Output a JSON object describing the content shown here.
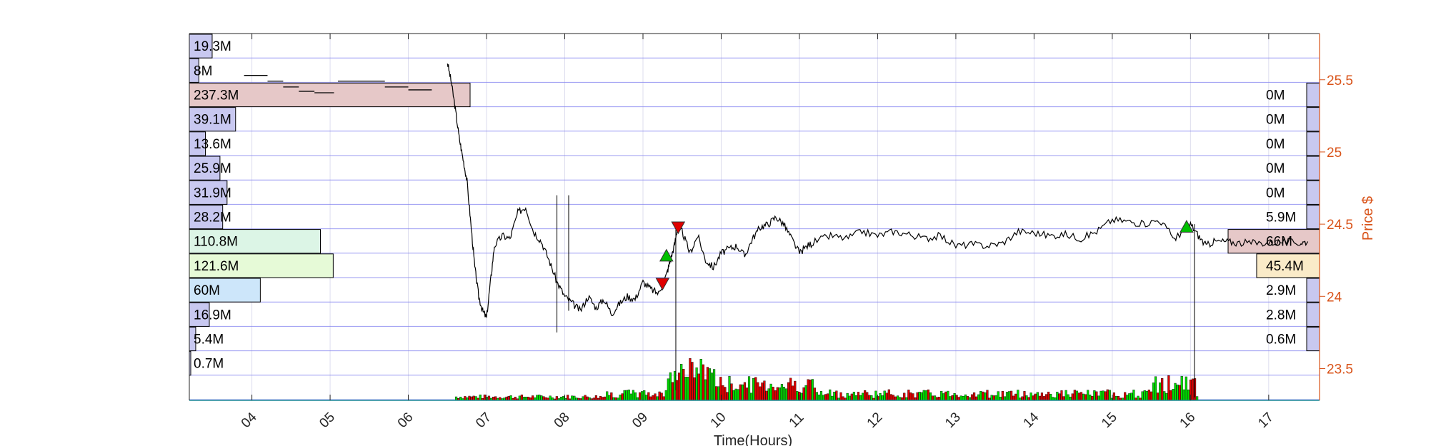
{
  "chart_data": {
    "type": "line",
    "xlabel": "Time(Hours)",
    "ylabel": "Price $",
    "x_ticks": [
      "04",
      "05",
      "06",
      "07",
      "08",
      "09",
      "10",
      "11",
      "12",
      "13",
      "14",
      "15",
      "16",
      "17"
    ],
    "xlim": [
      3.2,
      17.65
    ],
    "y_ticks": [
      23.5,
      24,
      24.5,
      25,
      25.5
    ],
    "ylim": [
      23.28,
      25.82
    ],
    "grid": true,
    "price_series": [
      [
        6.5,
        25.62
      ],
      [
        6.55,
        25.48
      ],
      [
        6.6,
        25.3
      ],
      [
        6.65,
        25.1
      ],
      [
        6.7,
        24.95
      ],
      [
        6.75,
        24.8
      ],
      [
        6.8,
        24.5
      ],
      [
        6.85,
        24.2
      ],
      [
        6.9,
        24.0
      ],
      [
        6.95,
        23.9
      ],
      [
        7.0,
        23.85
      ],
      [
        7.05,
        24.1
      ],
      [
        7.1,
        24.35
      ],
      [
        7.2,
        24.42
      ],
      [
        7.3,
        24.4
      ],
      [
        7.4,
        24.58
      ],
      [
        7.5,
        24.62
      ],
      [
        7.6,
        24.45
      ],
      [
        7.7,
        24.38
      ],
      [
        7.8,
        24.25
      ],
      [
        7.9,
        24.1
      ],
      [
        8.0,
        24.0
      ],
      [
        8.1,
        23.95
      ],
      [
        8.2,
        23.9
      ],
      [
        8.3,
        24.0
      ],
      [
        8.4,
        23.92
      ],
      [
        8.5,
        23.98
      ],
      [
        8.6,
        23.88
      ],
      [
        8.7,
        23.95
      ],
      [
        8.8,
        24.0
      ],
      [
        8.9,
        23.98
      ],
      [
        9.0,
        24.1
      ],
      [
        9.1,
        24.05
      ],
      [
        9.2,
        24.02
      ],
      [
        9.3,
        24.15
      ],
      [
        9.35,
        24.25
      ],
      [
        9.4,
        24.35
      ],
      [
        9.45,
        24.5
      ],
      [
        9.5,
        24.45
      ],
      [
        9.6,
        24.3
      ],
      [
        9.7,
        24.42
      ],
      [
        9.8,
        24.25
      ],
      [
        9.9,
        24.2
      ],
      [
        10.0,
        24.3
      ],
      [
        10.1,
        24.33
      ],
      [
        10.2,
        24.35
      ],
      [
        10.3,
        24.28
      ],
      [
        10.4,
        24.4
      ],
      [
        10.5,
        24.48
      ],
      [
        10.6,
        24.5
      ],
      [
        10.7,
        24.55
      ],
      [
        10.8,
        24.5
      ],
      [
        10.9,
        24.4
      ],
      [
        11.0,
        24.3
      ],
      [
        11.1,
        24.35
      ],
      [
        11.2,
        24.38
      ],
      [
        11.4,
        24.42
      ],
      [
        11.6,
        24.4
      ],
      [
        11.8,
        24.45
      ],
      [
        12.0,
        24.42
      ],
      [
        12.2,
        24.45
      ],
      [
        12.4,
        24.43
      ],
      [
        12.6,
        24.4
      ],
      [
        12.8,
        24.42
      ],
      [
        13.0,
        24.35
      ],
      [
        13.2,
        24.36
      ],
      [
        13.4,
        24.35
      ],
      [
        13.6,
        24.37
      ],
      [
        13.8,
        24.45
      ],
      [
        14.0,
        24.44
      ],
      [
        14.2,
        24.42
      ],
      [
        14.4,
        24.43
      ],
      [
        14.6,
        24.4
      ],
      [
        14.8,
        24.45
      ],
      [
        15.0,
        24.53
      ],
      [
        15.2,
        24.52
      ],
      [
        15.4,
        24.5
      ],
      [
        15.6,
        24.53
      ],
      [
        15.8,
        24.4
      ],
      [
        15.9,
        24.45
      ],
      [
        16.0,
        24.5
      ],
      [
        16.1,
        24.42
      ],
      [
        16.2,
        24.35
      ],
      [
        16.3,
        24.38
      ],
      [
        16.45,
        24.38
      ],
      [
        16.6,
        24.37
      ],
      [
        16.8,
        24.37
      ],
      [
        17.0,
        24.37
      ],
      [
        17.2,
        24.38
      ],
      [
        17.4,
        24.37
      ],
      [
        17.5,
        24.38
      ]
    ],
    "premarket_flat_segments": [
      {
        "x": [
          3.9,
          4.2
        ],
        "y": 25.53
      },
      {
        "x": [
          4.2,
          4.4
        ],
        "y": 25.49
      },
      {
        "x": [
          4.4,
          4.6
        ],
        "y": 25.45
      },
      {
        "x": [
          4.6,
          4.8
        ],
        "y": 25.42
      },
      {
        "x": [
          4.8,
          5.05
        ],
        "y": 25.41
      },
      {
        "x": [
          5.1,
          5.7
        ],
        "y": 25.49
      },
      {
        "x": [
          5.7,
          6.0
        ],
        "y": 25.45
      },
      {
        "x": [
          6.0,
          6.3
        ],
        "y": 25.43
      }
    ],
    "spikes": [
      {
        "x": 7.9,
        "from": 23.75,
        "to": 24.7
      },
      {
        "x": 8.05,
        "from": 23.9,
        "to": 24.7
      },
      {
        "x": 9.42,
        "from": 24.5,
        "to": 23.35
      },
      {
        "x": 16.05,
        "from": 24.5,
        "to": 23.3
      }
    ],
    "volume_bars": {
      "count": 340,
      "start": 6.6,
      "end": 16.1,
      "max_height_price_units": 0.32
    },
    "markers": [
      {
        "type": "buy",
        "x": 9.3,
        "y": 24.28,
        "color": "#00C000"
      },
      {
        "type": "buy",
        "x": 15.95,
        "y": 24.48,
        "color": "#00C000"
      },
      {
        "type": "sell",
        "x": 9.25,
        "y": 24.09,
        "color": "#E00000"
      },
      {
        "type": "sell",
        "x": 9.45,
        "y": 24.48,
        "color": "#E00000"
      }
    ],
    "volume_profile_left": [
      {
        "label": "19.3M",
        "value": 19.3,
        "fill": "#C8C8F0"
      },
      {
        "label": "8M",
        "value": 8.0,
        "fill": "#C8C8F0"
      },
      {
        "label": "237.3M",
        "value": 237.3,
        "fill": "#E6C8C8"
      },
      {
        "label": "39.1M",
        "value": 39.1,
        "fill": "#C8C8F0"
      },
      {
        "label": "13.6M",
        "value": 13.6,
        "fill": "#C8C8F0"
      },
      {
        "label": "25.9M",
        "value": 25.9,
        "fill": "#C8C8F0"
      },
      {
        "label": "31.9M",
        "value": 31.9,
        "fill": "#C8C8F0"
      },
      {
        "label": "28.2M",
        "value": 28.2,
        "fill": "#C8C8F0"
      },
      {
        "label": "110.8M",
        "value": 110.8,
        "fill": "#DCF5E6"
      },
      {
        "label": "121.6M",
        "value": 121.6,
        "fill": "#E6FAD7"
      },
      {
        "label": "60M",
        "value": 60.0,
        "fill": "#CDE6FA"
      },
      {
        "label": "16.9M",
        "value": 16.9,
        "fill": "#C8C8F0"
      },
      {
        "label": "5.4M",
        "value": 5.4,
        "fill": "#C8C8F0"
      },
      {
        "label": "0.7M",
        "value": 0.7,
        "fill": "#C8C8F0"
      }
    ],
    "volume_profile_right": [
      {
        "label": "0M",
        "value": 0.0,
        "fill": "#C8C8F0"
      },
      {
        "label": "0M",
        "value": 0.0,
        "fill": "#C8C8F0"
      },
      {
        "label": "0M",
        "value": 0.0,
        "fill": "#C8C8F0"
      },
      {
        "label": "0M",
        "value": 0.0,
        "fill": "#C8C8F0"
      },
      {
        "label": "0M",
        "value": 0.0,
        "fill": "#C8C8F0"
      },
      {
        "label": "5.9M",
        "value": 5.9,
        "fill": "#C8C8F0"
      },
      {
        "label": "66M",
        "value": 66.0,
        "fill": "#E6C8C8"
      },
      {
        "label": "45.4M",
        "value": 45.4,
        "fill": "#FAEBC8"
      },
      {
        "label": "2.9M",
        "value": 2.9,
        "fill": "#C8C8F0"
      },
      {
        "label": "2.8M",
        "value": 2.8,
        "fill": "#C8C8F0"
      },
      {
        "label": "0.6M",
        "value": 0.6,
        "fill": "#C8C8F0"
      }
    ],
    "colors": {
      "price_line": "#000000",
      "price_axis": "#D95319",
      "profile_rule": "#8080F0",
      "grid": "#DDDDEE",
      "volume_up": "#00E000",
      "volume_down": "#E00000",
      "bottom_line": "#1E8C96"
    }
  }
}
